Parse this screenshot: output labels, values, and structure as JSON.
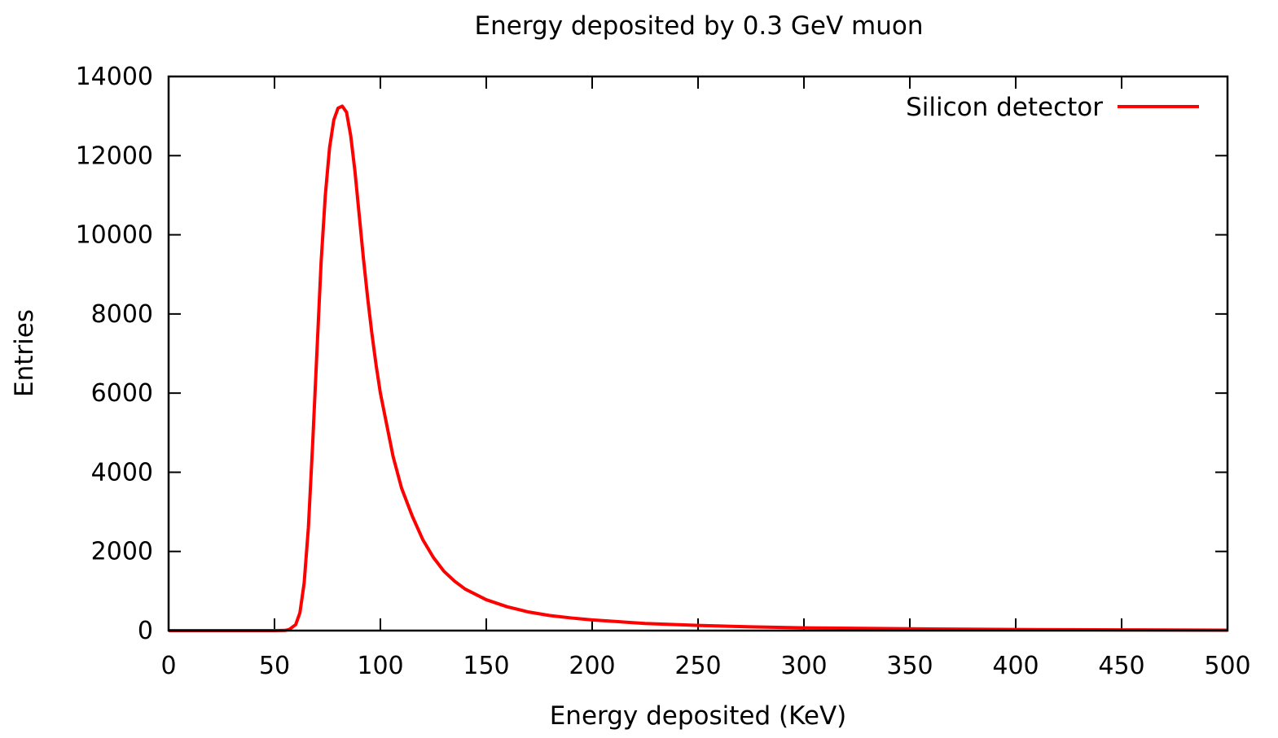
{
  "colors": {
    "background": "#ffffff",
    "axis": "#000000",
    "series": "#ff0000"
  },
  "chart_data": {
    "type": "line",
    "title": "Energy deposited by 0.3 GeV muon",
    "xlabel": "Energy deposited (KeV)",
    "ylabel": "Entries",
    "xlim": [
      0,
      500
    ],
    "ylim": [
      0,
      14000
    ],
    "xticks": [
      0,
      50,
      100,
      150,
      200,
      250,
      300,
      350,
      400,
      450,
      500
    ],
    "yticks": [
      0,
      2000,
      4000,
      6000,
      8000,
      10000,
      12000,
      14000
    ],
    "legend_position": "top-right",
    "grid": false,
    "series": [
      {
        "name": "Silicon detector",
        "color": "#ff0000",
        "x": [
          0,
          50,
          55,
          57,
          60,
          62,
          64,
          66,
          68,
          70,
          72,
          74,
          76,
          78,
          80,
          82,
          84,
          86,
          88,
          90,
          92,
          94,
          96,
          98,
          100,
          103,
          106,
          110,
          115,
          120,
          125,
          130,
          135,
          140,
          150,
          160,
          170,
          180,
          190,
          200,
          225,
          250,
          275,
          300,
          350,
          400,
          450,
          500
        ],
        "values": [
          0,
          0,
          5,
          30,
          150,
          450,
          1200,
          2600,
          4700,
          7000,
          9300,
          11000,
          12200,
          12900,
          13200,
          13250,
          13100,
          12500,
          11600,
          10500,
          9400,
          8400,
          7500,
          6700,
          6000,
          5200,
          4400,
          3600,
          2900,
          2300,
          1850,
          1500,
          1250,
          1050,
          780,
          600,
          470,
          380,
          320,
          270,
          180,
          130,
          95,
          70,
          45,
          28,
          18,
          10
        ]
      }
    ]
  }
}
